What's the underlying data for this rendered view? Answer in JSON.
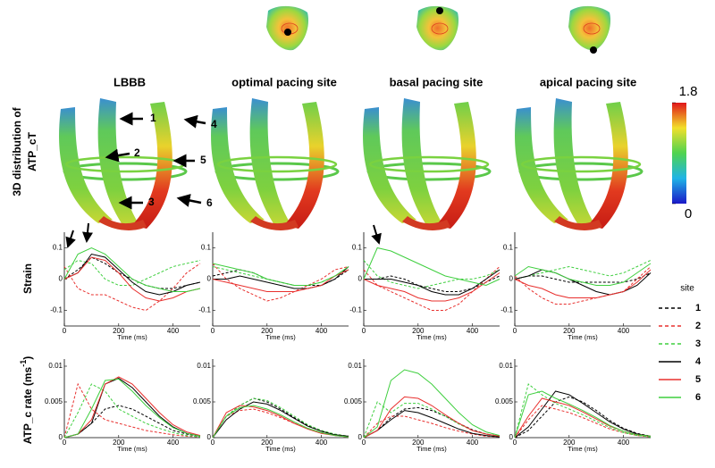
{
  "columns": [
    "LBBB",
    "optimal pacing site",
    "basal pacing site",
    "apical pacing site"
  ],
  "row_labels": {
    "distribution": [
      "3D distribution of",
      "ATP_cT"
    ],
    "strain": "Strain",
    "atp_rate": {
      "text": "ATP_c rate (ms",
      "sup": "-1",
      "end": ")"
    }
  },
  "colorbar": {
    "lim": [
      0,
      1.8
    ],
    "ticks": [
      0,
      1.8
    ]
  },
  "markers": [
    "1",
    "2",
    "3",
    "4",
    "5",
    "6"
  ],
  "legend": {
    "title": "site",
    "series": [
      {
        "name": "1",
        "color": "#000000",
        "dash": true
      },
      {
        "name": "2",
        "color": "#e8302e",
        "dash": true
      },
      {
        "name": "3",
        "color": "#3fcf3f",
        "dash": true
      },
      {
        "name": "4",
        "color": "#000000",
        "dash": false
      },
      {
        "name": "5",
        "color": "#e8302e",
        "dash": false
      },
      {
        "name": "6",
        "color": "#3fcf3f",
        "dash": false
      }
    ]
  },
  "chart_data": [
    {
      "type": "line",
      "xlabel": "Time (ms)",
      "x": [
        0,
        50,
        100,
        150,
        200,
        250,
        300,
        350,
        400,
        450,
        500
      ],
      "xlim": [
        0,
        500
      ],
      "xticks": [
        0,
        200,
        400
      ],
      "ylim": [
        -0.15,
        0.15
      ],
      "yticks": [
        -0.1,
        0,
        0.1
      ],
      "series": [
        {
          "values": [
            0.0,
            0.03,
            0.07,
            0.05,
            0.02,
            0.0,
            -0.02,
            -0.03,
            -0.03,
            -0.02,
            -0.01
          ]
        },
        {
          "values": [
            0.04,
            -0.03,
            -0.05,
            -0.05,
            -0.07,
            -0.09,
            -0.1,
            -0.07,
            -0.03,
            0.02,
            0.05
          ]
        },
        {
          "values": [
            0.03,
            0.06,
            0.05,
            0.0,
            -0.02,
            -0.02,
            0.0,
            0.02,
            0.04,
            0.05,
            0.06
          ]
        },
        {
          "values": [
            0.0,
            0.02,
            0.08,
            0.07,
            0.03,
            -0.01,
            -0.04,
            -0.05,
            -0.04,
            -0.02,
            -0.01
          ]
        },
        {
          "values": [
            0.0,
            0.02,
            0.07,
            0.06,
            0.02,
            -0.03,
            -0.06,
            -0.07,
            -0.06,
            -0.04,
            -0.03
          ]
        },
        {
          "values": [
            0.0,
            0.08,
            0.1,
            0.08,
            0.04,
            0.0,
            -0.02,
            -0.03,
            -0.04,
            -0.04,
            -0.03
          ]
        }
      ]
    },
    {
      "type": "line",
      "xlabel": "Time (ms)",
      "x": [
        0,
        50,
        100,
        150,
        200,
        250,
        300,
        350,
        400,
        450,
        500
      ],
      "xlim": [
        0,
        500
      ],
      "xticks": [
        0,
        200,
        400
      ],
      "ylim": [
        -0.15,
        0.15
      ],
      "yticks": [
        -0.1,
        0,
        0.1
      ],
      "series": [
        {
          "values": [
            0.01,
            0.02,
            0.03,
            0.02,
            0.0,
            -0.01,
            -0.02,
            -0.02,
            -0.02,
            0.0,
            0.03
          ]
        },
        {
          "values": [
            0.05,
            0.0,
            -0.03,
            -0.05,
            -0.07,
            -0.06,
            -0.04,
            -0.02,
            0.0,
            0.03,
            0.04
          ]
        },
        {
          "values": [
            0.04,
            0.03,
            0.02,
            0.01,
            0.0,
            -0.01,
            -0.02,
            -0.02,
            -0.01,
            0.01,
            0.03
          ]
        },
        {
          "values": [
            0.0,
            0.0,
            0.01,
            0.0,
            -0.01,
            -0.02,
            -0.03,
            -0.03,
            -0.02,
            0.0,
            0.04
          ]
        },
        {
          "values": [
            0.0,
            -0.01,
            -0.02,
            -0.03,
            -0.04,
            -0.04,
            -0.04,
            -0.03,
            -0.02,
            0.01,
            0.03
          ]
        },
        {
          "values": [
            0.05,
            0.04,
            0.03,
            0.02,
            0.0,
            -0.01,
            -0.02,
            -0.02,
            -0.01,
            0.01,
            0.04
          ]
        }
      ]
    },
    {
      "type": "line",
      "xlabel": "Time (ms)",
      "x": [
        0,
        50,
        100,
        150,
        200,
        250,
        300,
        350,
        400,
        450,
        500
      ],
      "xlim": [
        0,
        500
      ],
      "xticks": [
        0,
        200,
        400
      ],
      "ylim": [
        -0.15,
        0.15
      ],
      "yticks": [
        -0.1,
        0,
        0.1
      ],
      "series": [
        {
          "values": [
            0.0,
            0.0,
            0.01,
            0.0,
            -0.02,
            -0.03,
            -0.04,
            -0.04,
            -0.03,
            -0.01,
            0.01
          ]
        },
        {
          "values": [
            0.03,
            -0.02,
            -0.04,
            -0.06,
            -0.08,
            -0.1,
            -0.1,
            -0.08,
            -0.04,
            0.0,
            0.04
          ]
        },
        {
          "values": [
            0.06,
            0.01,
            -0.01,
            -0.02,
            -0.03,
            -0.02,
            -0.01,
            0.0,
            0.0,
            0.01,
            0.03
          ]
        },
        {
          "values": [
            0.0,
            0.0,
            0.0,
            -0.01,
            -0.02,
            -0.04,
            -0.05,
            -0.05,
            -0.03,
            0.0,
            0.03
          ]
        },
        {
          "values": [
            0.0,
            -0.02,
            -0.03,
            -0.04,
            -0.06,
            -0.07,
            -0.07,
            -0.06,
            -0.04,
            -0.01,
            0.02
          ]
        },
        {
          "values": [
            0.0,
            0.1,
            0.09,
            0.07,
            0.05,
            0.03,
            0.01,
            0.0,
            -0.01,
            -0.02,
            0.0
          ]
        }
      ]
    },
    {
      "type": "line",
      "xlabel": "Time (ms)",
      "x": [
        0,
        50,
        100,
        150,
        200,
        250,
        300,
        350,
        400,
        450,
        500
      ],
      "xlim": [
        0,
        500
      ],
      "xticks": [
        0,
        200,
        400
      ],
      "ylim": [
        -0.15,
        0.15
      ],
      "yticks": [
        -0.1,
        0,
        0.1
      ],
      "series": [
        {
          "values": [
            0.0,
            0.01,
            0.01,
            0.0,
            -0.01,
            -0.01,
            -0.01,
            -0.01,
            -0.01,
            0.0,
            0.02
          ]
        },
        {
          "values": [
            0.01,
            -0.03,
            -0.06,
            -0.08,
            -0.08,
            -0.07,
            -0.06,
            -0.05,
            -0.04,
            0.0,
            0.04
          ]
        },
        {
          "values": [
            0.0,
            0.01,
            0.02,
            0.03,
            0.04,
            0.03,
            0.02,
            0.01,
            0.02,
            0.04,
            0.06
          ]
        },
        {
          "values": [
            0.0,
            0.01,
            0.03,
            0.02,
            0.0,
            -0.02,
            -0.04,
            -0.05,
            -0.04,
            -0.02,
            0.02
          ]
        },
        {
          "values": [
            0.0,
            -0.02,
            -0.03,
            -0.05,
            -0.06,
            -0.06,
            -0.06,
            -0.05,
            -0.04,
            -0.01,
            0.03
          ]
        },
        {
          "values": [
            0.01,
            0.04,
            0.03,
            0.02,
            0.0,
            -0.01,
            -0.02,
            -0.02,
            -0.01,
            0.02,
            0.05
          ]
        }
      ]
    },
    {
      "type": "line",
      "xlabel": "Time (ms)",
      "x": [
        0,
        50,
        100,
        150,
        200,
        250,
        300,
        350,
        400,
        450,
        500
      ],
      "xlim": [
        0,
        500
      ],
      "xticks": [
        0,
        200,
        400
      ],
      "ylim": [
        0,
        0.011
      ],
      "yticks": [
        0,
        0.005,
        0.01
      ],
      "series": [
        {
          "values": [
            0,
            0.0005,
            0.002,
            0.004,
            0.0045,
            0.004,
            0.003,
            0.002,
            0.001,
            0.0005,
            0.0002
          ]
        },
        {
          "values": [
            0,
            0.0075,
            0.004,
            0.0025,
            0.002,
            0.0015,
            0.001,
            0.0007,
            0.0004,
            0.0002,
            0.0001
          ]
        },
        {
          "values": [
            0,
            0.0035,
            0.0075,
            0.0065,
            0.004,
            0.003,
            0.002,
            0.0013,
            0.0007,
            0.0003,
            0.0001
          ]
        },
        {
          "values": [
            0,
            0.0005,
            0.002,
            0.0075,
            0.0083,
            0.007,
            0.005,
            0.003,
            0.0015,
            0.0006,
            0.0002
          ]
        },
        {
          "values": [
            0,
            0.0005,
            0.0025,
            0.0075,
            0.0085,
            0.0075,
            0.0055,
            0.0035,
            0.0018,
            0.0008,
            0.0003
          ]
        },
        {
          "values": [
            0,
            0.0005,
            0.004,
            0.008,
            0.0082,
            0.0065,
            0.0045,
            0.0028,
            0.0014,
            0.0006,
            0.0002
          ]
        }
      ]
    },
    {
      "type": "line",
      "xlabel": "Time (ms)",
      "x": [
        0,
        50,
        100,
        150,
        200,
        250,
        300,
        350,
        400,
        450,
        500
      ],
      "xlim": [
        0,
        500
      ],
      "xticks": [
        0,
        200,
        400
      ],
      "ylim": [
        0,
        0.011
      ],
      "yticks": [
        0,
        0.005,
        0.01
      ],
      "series": [
        {
          "values": [
            0,
            0.003,
            0.0045,
            0.0055,
            0.005,
            0.004,
            0.0028,
            0.0017,
            0.0009,
            0.0004,
            0.0002
          ]
        },
        {
          "values": [
            0,
            0.003,
            0.0038,
            0.004,
            0.0035,
            0.0028,
            0.002,
            0.0013,
            0.0007,
            0.0003,
            0.0001
          ]
        },
        {
          "values": [
            0,
            0.003,
            0.0045,
            0.0055,
            0.0052,
            0.0042,
            0.003,
            0.0018,
            0.001,
            0.0005,
            0.0002
          ]
        },
        {
          "values": [
            0,
            0.0025,
            0.004,
            0.005,
            0.0047,
            0.0038,
            0.0027,
            0.0016,
            0.0009,
            0.0004,
            0.0002
          ]
        },
        {
          "values": [
            0,
            0.0035,
            0.0045,
            0.0043,
            0.0038,
            0.003,
            0.002,
            0.0012,
            0.0006,
            0.0003,
            0.0001
          ]
        },
        {
          "values": [
            0,
            0.003,
            0.0042,
            0.0045,
            0.004,
            0.0032,
            0.0022,
            0.0013,
            0.0007,
            0.0003,
            0.0001
          ]
        }
      ]
    },
    {
      "type": "line",
      "xlabel": "Time (ms)",
      "x": [
        0,
        50,
        100,
        150,
        200,
        250,
        300,
        350,
        400,
        450,
        500
      ],
      "xlim": [
        0,
        500
      ],
      "xticks": [
        0,
        200,
        400
      ],
      "ylim": [
        0,
        0.011
      ],
      "yticks": [
        0,
        0.005,
        0.01
      ],
      "series": [
        {
          "values": [
            0,
            0.001,
            0.0028,
            0.004,
            0.0042,
            0.0038,
            0.003,
            0.002,
            0.0011,
            0.0005,
            0.0002
          ]
        },
        {
          "values": [
            0,
            0.002,
            0.003,
            0.003,
            0.0025,
            0.002,
            0.0014,
            0.0009,
            0.0005,
            0.0002,
            0.0001
          ]
        },
        {
          "values": [
            0,
            0.005,
            0.0035,
            0.0048,
            0.0048,
            0.004,
            0.003,
            0.0019,
            0.001,
            0.0005,
            0.0002
          ]
        },
        {
          "values": [
            0,
            0.001,
            0.0025,
            0.0038,
            0.0035,
            0.0028,
            0.002,
            0.0012,
            0.0006,
            0.0003,
            0.0001
          ]
        },
        {
          "values": [
            0,
            0.001,
            0.004,
            0.0057,
            0.0055,
            0.0045,
            0.0032,
            0.002,
            0.001,
            0.0005,
            0.0002
          ]
        },
        {
          "values": [
            0,
            0.0015,
            0.008,
            0.0095,
            0.009,
            0.0075,
            0.0055,
            0.0035,
            0.0018,
            0.0008,
            0.0003
          ]
        }
      ]
    },
    {
      "type": "line",
      "xlabel": "Time (ms)",
      "x": [
        0,
        50,
        100,
        150,
        200,
        250,
        300,
        350,
        400,
        450,
        500
      ],
      "xlim": [
        0,
        500
      ],
      "xticks": [
        0,
        200,
        400
      ],
      "ylim": [
        0,
        0.011
      ],
      "yticks": [
        0,
        0.005,
        0.01
      ],
      "series": [
        {
          "values": [
            0,
            0.001,
            0.003,
            0.005,
            0.0057,
            0.005,
            0.0038,
            0.0024,
            0.0013,
            0.0006,
            0.0002
          ]
        },
        {
          "values": [
            0,
            0.0025,
            0.0045,
            0.004,
            0.0035,
            0.0028,
            0.002,
            0.0012,
            0.0007,
            0.0003,
            0.0001
          ]
        },
        {
          "values": [
            0,
            0.0075,
            0.006,
            0.0048,
            0.004,
            0.0032,
            0.0023,
            0.0014,
            0.0007,
            0.0003,
            0.0001
          ]
        },
        {
          "values": [
            0,
            0.0015,
            0.004,
            0.0065,
            0.006,
            0.0048,
            0.0035,
            0.0022,
            0.0012,
            0.0005,
            0.0002
          ]
        },
        {
          "values": [
            0,
            0.003,
            0.0055,
            0.005,
            0.0045,
            0.0036,
            0.0026,
            0.0016,
            0.0009,
            0.0004,
            0.0002
          ]
        },
        {
          "values": [
            0,
            0.006,
            0.0065,
            0.0055,
            0.0047,
            0.0038,
            0.0028,
            0.0017,
            0.0009,
            0.0004,
            0.0002
          ]
        }
      ]
    }
  ]
}
